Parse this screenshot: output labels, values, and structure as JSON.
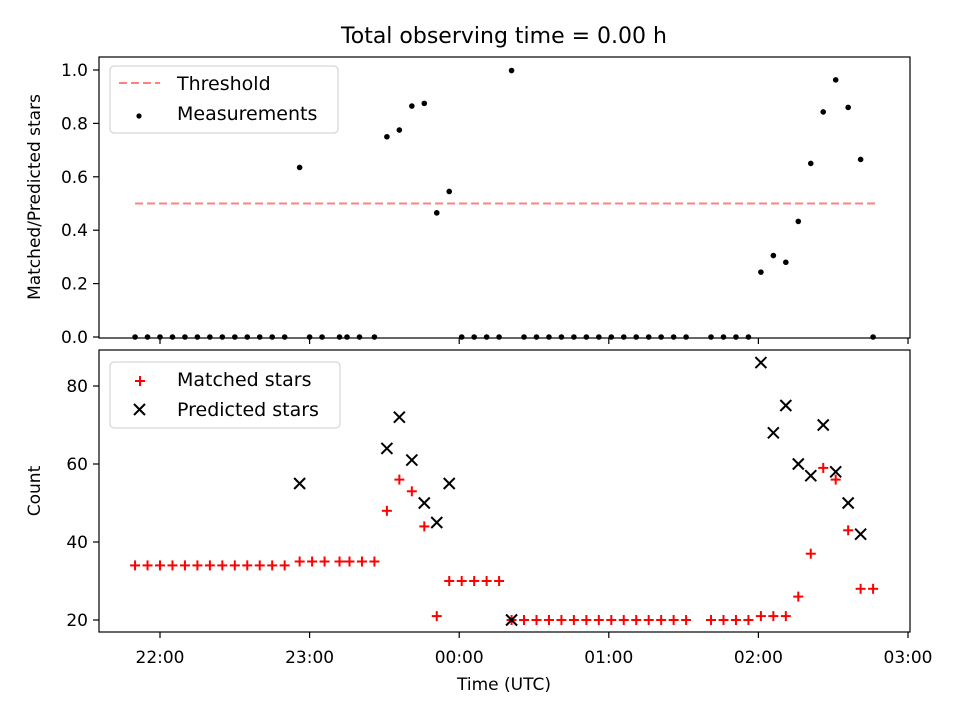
{
  "title": "Total observing time = 0.00 h",
  "chart_data": [
    {
      "type": "scatter",
      "ylabel": "Matched/Predicted stars",
      "ylim": [
        0,
        1.05
      ],
      "yticks": [
        "0.0",
        "0.2",
        "0.4",
        "0.6",
        "0.8",
        "1.0"
      ],
      "grid": false,
      "legend_position": "top-left",
      "threshold": {
        "name": "Threshold",
        "value": 0.5,
        "x_range": [
          "21:50",
          "02:47"
        ],
        "color": "#ff8080",
        "style": "dashed"
      },
      "series": [
        {
          "name": "Measurements",
          "marker": "dot",
          "color": "#000000",
          "points": [
            [
              "21:50",
              0
            ],
            [
              "21:55",
              0
            ],
            [
              "22:00",
              0
            ],
            [
              "22:05",
              0
            ],
            [
              "22:10",
              0
            ],
            [
              "22:15",
              0
            ],
            [
              "22:20",
              0
            ],
            [
              "22:25",
              0
            ],
            [
              "22:30",
              0
            ],
            [
              "22:35",
              0
            ],
            [
              "22:40",
              0
            ],
            [
              "22:45",
              0
            ],
            [
              "22:50",
              0
            ],
            [
              "22:56",
              0.635
            ],
            [
              "23:00",
              0
            ],
            [
              "23:05",
              0
            ],
            [
              "23:12",
              0
            ],
            [
              "23:15",
              0
            ],
            [
              "23:20",
              0
            ],
            [
              "23:26",
              0
            ],
            [
              "23:31",
              0.75
            ],
            [
              "23:36",
              0.775
            ],
            [
              "23:41",
              0.865
            ],
            [
              "23:46",
              0.875
            ],
            [
              "23:51",
              0.465
            ],
            [
              "23:56",
              0.545
            ],
            [
              "00:01",
              0
            ],
            [
              "00:06",
              0
            ],
            [
              "00:11",
              0
            ],
            [
              "00:16",
              0
            ],
            [
              "00:21",
              0.998
            ],
            [
              "00:26",
              0
            ],
            [
              "00:31",
              0
            ],
            [
              "00:36",
              0
            ],
            [
              "00:41",
              0
            ],
            [
              "00:46",
              0
            ],
            [
              "00:51",
              0
            ],
            [
              "00:56",
              0
            ],
            [
              "01:01",
              0
            ],
            [
              "01:06",
              0
            ],
            [
              "01:11",
              0
            ],
            [
              "01:16",
              0
            ],
            [
              "01:21",
              0
            ],
            [
              "01:26",
              0
            ],
            [
              "01:31",
              0
            ],
            [
              "01:41",
              0
            ],
            [
              "01:46",
              0
            ],
            [
              "01:51",
              0
            ],
            [
              "01:56",
              0
            ],
            [
              "02:01",
              0.243
            ],
            [
              "02:06",
              0.305
            ],
            [
              "02:11",
              0.28
            ],
            [
              "02:16",
              0.433
            ],
            [
              "02:21",
              0.65
            ],
            [
              "02:26",
              0.843
            ],
            [
              "02:31",
              0.963
            ],
            [
              "02:36",
              0.86
            ],
            [
              "02:41",
              0.665
            ],
            [
              "02:46",
              0
            ]
          ]
        }
      ]
    },
    {
      "type": "scatter",
      "ylabel": "Count",
      "xlabel": "Time (UTC)",
      "xticks": [
        "22:00",
        "23:00",
        "00:00",
        "01:00",
        "02:00",
        "03:00"
      ],
      "yticks": [
        "20",
        "40",
        "60",
        "80"
      ],
      "ylim": [
        16,
        90
      ],
      "grid": false,
      "legend_position": "top-left",
      "series": [
        {
          "name": "Matched stars",
          "marker": "plus",
          "color": "#ff0000",
          "points": [
            [
              "21:50",
              34
            ],
            [
              "21:55",
              34
            ],
            [
              "22:00",
              34
            ],
            [
              "22:05",
              34
            ],
            [
              "22:10",
              34
            ],
            [
              "22:15",
              34
            ],
            [
              "22:20",
              34
            ],
            [
              "22:25",
              34
            ],
            [
              "22:30",
              34
            ],
            [
              "22:35",
              34
            ],
            [
              "22:40",
              34
            ],
            [
              "22:45",
              34
            ],
            [
              "22:50",
              34
            ],
            [
              "22:56",
              35
            ],
            [
              "23:01",
              35
            ],
            [
              "23:06",
              35
            ],
            [
              "23:12",
              35
            ],
            [
              "23:16",
              35
            ],
            [
              "23:21",
              35
            ],
            [
              "23:26",
              35
            ],
            [
              "23:31",
              48
            ],
            [
              "23:36",
              56
            ],
            [
              "23:41",
              53
            ],
            [
              "23:46",
              44
            ],
            [
              "23:51",
              21
            ],
            [
              "23:56",
              30
            ],
            [
              "00:01",
              30
            ],
            [
              "00:06",
              30
            ],
            [
              "00:11",
              30
            ],
            [
              "00:16",
              30
            ],
            [
              "00:21",
              20
            ],
            [
              "00:26",
              20
            ],
            [
              "00:31",
              20
            ],
            [
              "00:36",
              20
            ],
            [
              "00:41",
              20
            ],
            [
              "00:46",
              20
            ],
            [
              "00:51",
              20
            ],
            [
              "00:56",
              20
            ],
            [
              "01:01",
              20
            ],
            [
              "01:06",
              20
            ],
            [
              "01:11",
              20
            ],
            [
              "01:16",
              20
            ],
            [
              "01:21",
              20
            ],
            [
              "01:26",
              20
            ],
            [
              "01:31",
              20
            ],
            [
              "01:41",
              20
            ],
            [
              "01:46",
              20
            ],
            [
              "01:51",
              20
            ],
            [
              "01:56",
              20
            ],
            [
              "02:01",
              21
            ],
            [
              "02:06",
              21
            ],
            [
              "02:11",
              21
            ],
            [
              "02:16",
              26
            ],
            [
              "02:21",
              37
            ],
            [
              "02:26",
              59
            ],
            [
              "02:31",
              56
            ],
            [
              "02:36",
              43
            ],
            [
              "02:41",
              28
            ],
            [
              "02:46",
              28
            ]
          ]
        },
        {
          "name": "Predicted stars",
          "marker": "x",
          "color": "#000000",
          "points": [
            [
              "22:56",
              55
            ],
            [
              "23:31",
              64
            ],
            [
              "23:36",
              72
            ],
            [
              "23:41",
              61
            ],
            [
              "23:46",
              50
            ],
            [
              "23:51",
              45
            ],
            [
              "23:56",
              55
            ],
            [
              "00:21",
              20
            ],
            [
              "02:01",
              86
            ],
            [
              "02:06",
              68
            ],
            [
              "02:11",
              75
            ],
            [
              "02:16",
              60
            ],
            [
              "02:21",
              57
            ],
            [
              "02:26",
              70
            ],
            [
              "02:31",
              58
            ],
            [
              "02:36",
              50
            ],
            [
              "02:41",
              42
            ]
          ]
        }
      ]
    }
  ]
}
